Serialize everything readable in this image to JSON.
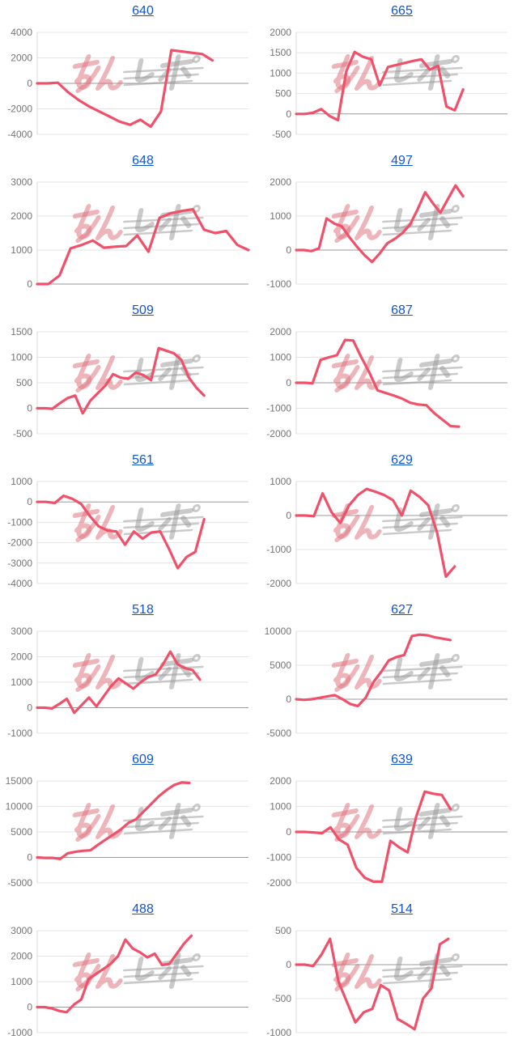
{
  "page": {
    "background": "#ffffff"
  },
  "style": {
    "line_color": "#f0506a",
    "title_color": "#1155cc",
    "tick_color": "#757575",
    "grid_color": "#e4e4e4",
    "zero_color": "#9a9a9a",
    "axis_color": "#d9d9d9",
    "watermark_pink": "rgba(223,118,130,0.55)",
    "watermark_gray": "rgba(150,150,150,0.50)"
  },
  "watermark": {
    "text_pink": "みん",
    "text_gray": "レポ"
  },
  "chart_data": [
    {
      "type": "line",
      "title": "640",
      "xlabel": "",
      "ylabel": "",
      "ylim": [
        -4000,
        4000
      ],
      "ytick_step": 2000,
      "yticks": [
        4000,
        2000,
        0,
        -2000,
        -4000
      ],
      "grid": true,
      "legend": false,
      "x_span_frac": 0.83,
      "values": [
        0,
        0,
        50,
        -700,
        -1300,
        -1800,
        -2200,
        -2600,
        -3000,
        -3250,
        -2850,
        -3400,
        -2200,
        2600,
        2500,
        2400,
        2300,
        1800
      ]
    },
    {
      "type": "line",
      "title": "665",
      "xlabel": "",
      "ylabel": "",
      "ylim": [
        -500,
        2000
      ],
      "ytick_step": 500,
      "yticks": [
        2000,
        1500,
        1000,
        500,
        0,
        -500
      ],
      "grid": true,
      "legend": false,
      "x_span_frac": 0.79,
      "values": [
        0,
        0,
        30,
        120,
        -50,
        -150,
        1050,
        1520,
        1400,
        1340,
        700,
        1150,
        1200,
        1250,
        1300,
        1340,
        1090,
        1180,
        180,
        90,
        600
      ]
    },
    {
      "type": "line",
      "title": "648",
      "xlabel": "",
      "ylabel": "",
      "ylim": [
        0,
        3000
      ],
      "ytick_step": 1000,
      "yticks": [
        3000,
        2000,
        1000,
        0
      ],
      "grid": true,
      "legend": false,
      "x_span_frac": 1.0,
      "values": [
        0,
        0,
        250,
        1050,
        1150,
        1280,
        1070,
        1100,
        1120,
        1430,
        950,
        1950,
        2080,
        2150,
        2200,
        1600,
        1500,
        1560,
        1150,
        1000
      ]
    },
    {
      "type": "line",
      "title": "497",
      "xlabel": "",
      "ylabel": "",
      "ylim": [
        -1000,
        2000
      ],
      "ytick_step": 1000,
      "yticks": [
        2000,
        1000,
        0,
        -1000
      ],
      "grid": true,
      "legend": false,
      "x_span_frac": 0.79,
      "values": [
        0,
        0,
        -30,
        50,
        930,
        780,
        700,
        380,
        100,
        -150,
        -350,
        -100,
        200,
        330,
        500,
        750,
        1200,
        1700,
        1380,
        1100,
        1500,
        1900,
        1580
      ]
    },
    {
      "type": "line",
      "title": "509",
      "xlabel": "",
      "ylabel": "",
      "ylim": [
        -500,
        1500
      ],
      "ytick_step": 500,
      "yticks": [
        1500,
        1000,
        500,
        0,
        -500
      ],
      "grid": true,
      "legend": false,
      "x_span_frac": 0.79,
      "values": [
        0,
        0,
        -10,
        100,
        200,
        250,
        -100,
        150,
        300,
        450,
        670,
        600,
        580,
        700,
        650,
        550,
        1180,
        1130,
        1080,
        950,
        600,
        400,
        250
      ]
    },
    {
      "type": "line",
      "title": "687",
      "xlabel": "",
      "ylabel": "",
      "ylim": [
        -2000,
        2000
      ],
      "ytick_step": 1000,
      "yticks": [
        2000,
        1000,
        0,
        -1000,
        -2000
      ],
      "grid": true,
      "legend": false,
      "x_span_frac": 0.77,
      "values": [
        0,
        0,
        -20,
        900,
        1000,
        1080,
        1680,
        1660,
        1000,
        400,
        -300,
        -400,
        -500,
        -620,
        -780,
        -850,
        -880,
        -1200,
        -1450,
        -1700,
        -1720
      ]
    },
    {
      "type": "line",
      "title": "561",
      "xlabel": "",
      "ylabel": "",
      "ylim": [
        -4000,
        1000
      ],
      "ytick_step": 1000,
      "yticks": [
        1000,
        0,
        -1000,
        -2000,
        -3000,
        -4000
      ],
      "grid": true,
      "legend": false,
      "x_span_frac": 0.79,
      "values": [
        0,
        0,
        -50,
        300,
        150,
        -100,
        -700,
        -1200,
        -1400,
        -1450,
        -2100,
        -1450,
        -1800,
        -1500,
        -1450,
        -2300,
        -3250,
        -2700,
        -2450,
        -850
      ]
    },
    {
      "type": "line",
      "title": "629",
      "xlabel": "",
      "ylabel": "",
      "ylim": [
        -2000,
        1000
      ],
      "ytick_step": 1000,
      "yticks": [
        1000,
        0,
        -1000,
        -2000
      ],
      "grid": true,
      "legend": false,
      "x_span_frac": 0.75,
      "values": [
        0,
        0,
        -20,
        650,
        100,
        -220,
        300,
        600,
        780,
        700,
        600,
        450,
        0,
        730,
        550,
        300,
        -500,
        -1800,
        -1500
      ]
    },
    {
      "type": "line",
      "title": "518",
      "xlabel": "",
      "ylabel": "",
      "ylim": [
        -1000,
        3000
      ],
      "ytick_step": 1000,
      "yticks": [
        3000,
        2000,
        1000,
        0,
        -1000
      ],
      "grid": true,
      "legend": false,
      "x_span_frac": 0.77,
      "values": [
        0,
        0,
        -30,
        150,
        350,
        -200,
        100,
        400,
        50,
        450,
        850,
        1150,
        950,
        750,
        1000,
        1200,
        1300,
        1700,
        2200,
        1700,
        1550,
        1480,
        1100
      ]
    },
    {
      "type": "line",
      "title": "627",
      "xlabel": "",
      "ylabel": "",
      "ylim": [
        -5000,
        10000
      ],
      "ytick_step": 5000,
      "yticks": [
        10000,
        5000,
        0,
        -5000
      ],
      "grid": true,
      "legend": false,
      "x_span_frac": 0.73,
      "values": [
        0,
        -100,
        0,
        200,
        400,
        600,
        0,
        -700,
        -1000,
        200,
        2500,
        4000,
        5700,
        6200,
        6500,
        9300,
        9500,
        9400,
        9100,
        8900,
        8700
      ]
    },
    {
      "type": "line",
      "title": "609",
      "xlabel": "",
      "ylabel": "",
      "ylim": [
        -5000,
        15000
      ],
      "ytick_step": 5000,
      "yticks": [
        15000,
        10000,
        5000,
        0,
        -5000
      ],
      "grid": true,
      "legend": false,
      "x_span_frac": 0.72,
      "values": [
        0,
        -100,
        -100,
        -300,
        800,
        1100,
        1300,
        1400,
        2500,
        3500,
        4500,
        5500,
        6800,
        7500,
        9000,
        10500,
        12000,
        13200,
        14200,
        14700,
        14600
      ]
    },
    {
      "type": "line",
      "title": "639",
      "xlabel": "",
      "ylabel": "",
      "ylim": [
        -2000,
        2000
      ],
      "ytick_step": 1000,
      "yticks": [
        2000,
        1000,
        0,
        -1000,
        -2000
      ],
      "grid": true,
      "legend": false,
      "x_span_frac": 0.73,
      "values": [
        0,
        0,
        -20,
        -50,
        180,
        -300,
        -500,
        -1400,
        -1800,
        -1950,
        -1950,
        -350,
        -600,
        -800,
        600,
        1580,
        1500,
        1450,
        900
      ]
    },
    {
      "type": "line",
      "title": "488",
      "xlabel": "",
      "ylabel": "",
      "ylim": [
        -1000,
        3000
      ],
      "ytick_step": 1000,
      "yticks": [
        3000,
        2000,
        1000,
        0,
        -1000
      ],
      "grid": true,
      "legend": false,
      "x_span_frac": 0.73,
      "values": [
        0,
        0,
        -50,
        -150,
        -200,
        100,
        300,
        1100,
        1300,
        1500,
        1700,
        2000,
        2650,
        2300,
        2150,
        1950,
        2100,
        1650,
        1700,
        2100,
        2500,
        2800
      ]
    },
    {
      "type": "line",
      "title": "514",
      "xlabel": "",
      "ylabel": "",
      "ylim": [
        -1000,
        500
      ],
      "ytick_step": 500,
      "yticks": [
        500,
        0,
        -500,
        -1000
      ],
      "grid": true,
      "legend": false,
      "x_span_frac": 0.72,
      "values": [
        0,
        0,
        -20,
        150,
        380,
        -250,
        -550,
        -850,
        -700,
        -650,
        -300,
        -380,
        -800,
        -870,
        -950,
        -500,
        -350,
        300,
        380
      ]
    }
  ]
}
